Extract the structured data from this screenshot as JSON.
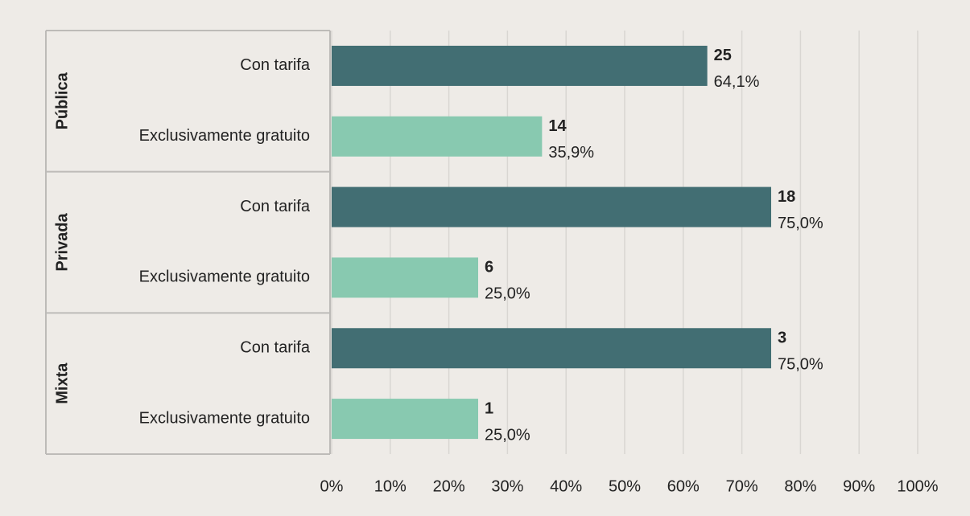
{
  "chart_data": {
    "type": "bar",
    "orientation": "horizontal",
    "categories": [
      "Pública",
      "Privada",
      "Mixta"
    ],
    "series": [
      {
        "name": "Con tarifa",
        "color": "#426e73",
        "values": [
          64.1,
          75.0,
          75.0
        ],
        "value_labels": [
          "64,1%",
          "75,0%",
          "75,0%"
        ],
        "counts": [
          25,
          18,
          3
        ]
      },
      {
        "name": "Exclusivamente gratuito",
        "color": "#88c9b0",
        "values": [
          35.9,
          25.0,
          25.0
        ],
        "value_labels": [
          "35,9%",
          "25,0%",
          "25,0%"
        ],
        "counts": [
          14,
          6,
          1
        ]
      }
    ],
    "xlim": [
      0,
      100
    ],
    "xticks": [
      {
        "value": 0,
        "label": "0%"
      },
      {
        "value": 10,
        "label": "10%"
      },
      {
        "value": 20,
        "label": "20%"
      },
      {
        "value": 30,
        "label": "30%"
      },
      {
        "value": 40,
        "label": "40%"
      },
      {
        "value": 50,
        "label": "50%"
      },
      {
        "value": 60,
        "label": "60%"
      },
      {
        "value": 70,
        "label": "70%"
      },
      {
        "value": 80,
        "label": "80%"
      },
      {
        "value": 90,
        "label": "90%"
      },
      {
        "value": 100,
        "label": "100%"
      }
    ],
    "grid": true
  }
}
